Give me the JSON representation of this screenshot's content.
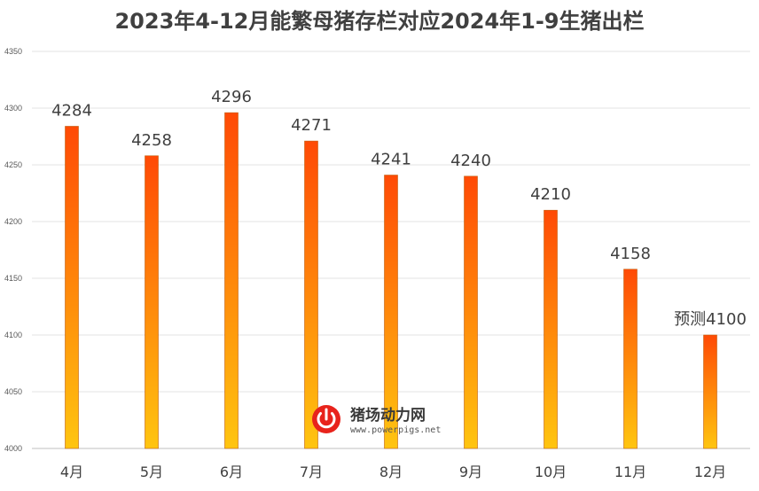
{
  "chart_data": {
    "type": "bar",
    "title": "2023年4-12月能繁母猪存栏对应2024年1-9生猪出栏",
    "categories": [
      "4月",
      "5月",
      "6月",
      "7月",
      "8月",
      "9月",
      "10月",
      "11月",
      "12月"
    ],
    "values": [
      4284,
      4258,
      4296,
      4271,
      4241,
      4240,
      4210,
      4158,
      4100
    ],
    "data_labels": [
      "4284",
      "4258",
      "4296",
      "4271",
      "4241",
      "4240",
      "4210",
      "4158",
      "预测4100"
    ],
    "ylim": [
      4000,
      4350
    ],
    "yticks": [
      4000,
      4050,
      4100,
      4150,
      4200,
      4250,
      4300,
      4350
    ],
    "xlabel": "",
    "ylabel": "",
    "grid": true,
    "bar_gradient": {
      "top": "#FF4A05",
      "bottom": "#FFC510"
    },
    "bar_edge": "#C06010"
  },
  "watermark": {
    "name": "猪场动力网",
    "url": "www.powerpigs.net",
    "logo_color": "#E8231C",
    "icon": "power-button-icon"
  }
}
